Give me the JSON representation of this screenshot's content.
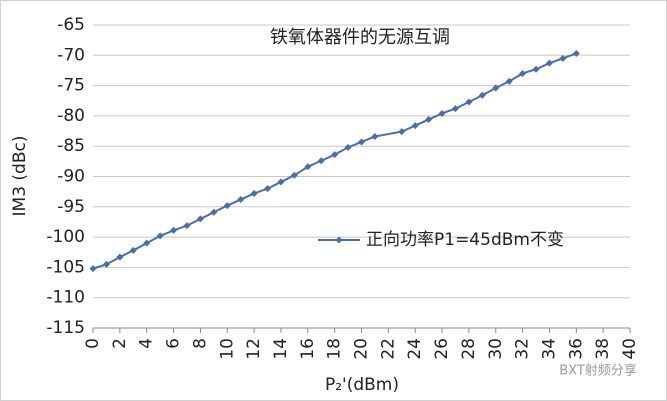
{
  "chart_data": {
    "type": "line",
    "title": "铁氧体器件的无源互调",
    "x_label": "P₂'(dBm)",
    "y_label": "IM3 (dBc)",
    "watermark": "BXT射频分享",
    "x": [
      0,
      1,
      2,
      3,
      4,
      5,
      6,
      7,
      8,
      9,
      10,
      11,
      12,
      13,
      14,
      15,
      16,
      17,
      18,
      19,
      20,
      21,
      23,
      24,
      25,
      26,
      27,
      28,
      29,
      30,
      31,
      32,
      33,
      34,
      35,
      36
    ],
    "series": [
      {
        "name": "正向功率P1=45dBm不变",
        "color": "#4a6fa5",
        "values": [
          -105.2,
          -104.5,
          -103.3,
          -102.2,
          -101.0,
          -99.8,
          -98.9,
          -98.1,
          -97.0,
          -95.9,
          -94.8,
          -93.8,
          -92.8,
          -92.0,
          -90.9,
          -89.8,
          -88.4,
          -87.4,
          -86.4,
          -85.2,
          -84.3,
          -83.4,
          -82.6,
          -81.6,
          -80.6,
          -79.6,
          -78.8,
          -77.7,
          -76.6,
          -75.4,
          -74.3,
          -73.0,
          -72.3,
          -71.3,
          -70.5,
          -69.7
        ]
      }
    ],
    "xlim": [
      0,
      40
    ],
    "xticks": [
      0,
      2,
      4,
      6,
      8,
      10,
      12,
      14,
      16,
      18,
      20,
      22,
      24,
      26,
      28,
      30,
      32,
      34,
      36,
      38,
      40
    ],
    "ylim": [
      -115,
      -65
    ],
    "yticks": [
      -115,
      -110,
      -105,
      -100,
      -95,
      -90,
      -85,
      -80,
      -75,
      -70,
      -65
    ],
    "grid": true
  }
}
